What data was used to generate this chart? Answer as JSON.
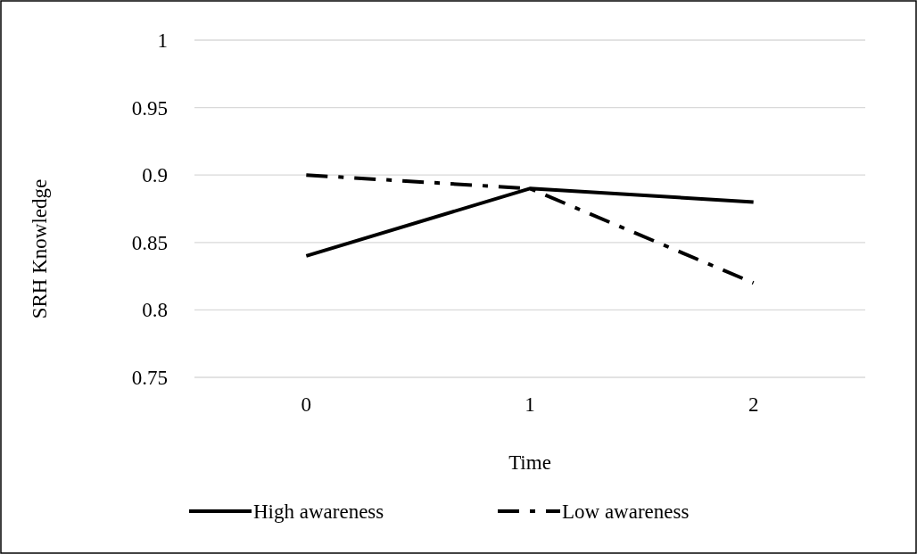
{
  "chart_data": {
    "type": "line",
    "xlabel": "Time",
    "ylabel": "SRH Knowledge",
    "categories": [
      "0",
      "1",
      "2"
    ],
    "series": [
      {
        "name": "High awareness",
        "color": "#000000",
        "values": [
          0.84,
          0.89,
          0.88
        ],
        "line_style": "solid"
      },
      {
        "name": "Low awareness",
        "color": "#000000",
        "values": [
          0.9,
          0.89,
          0.82
        ],
        "line_style": "dashdot"
      }
    ],
    "ylim": [
      0.75,
      1
    ],
    "yticks": [
      0.75,
      0.8,
      0.85,
      0.9,
      0.95,
      1
    ],
    "grid": "y",
    "legend": "bottom"
  }
}
